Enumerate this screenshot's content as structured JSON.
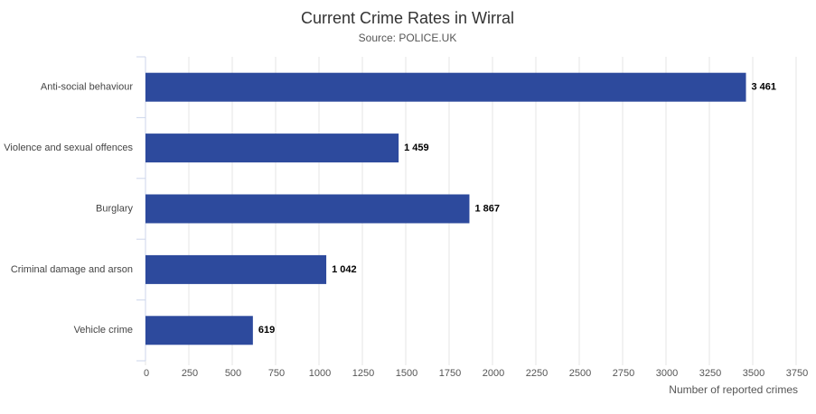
{
  "chart_data": {
    "type": "bar",
    "orientation": "horizontal",
    "title": "Current Crime Rates in Wirral",
    "subtitle": "Source: POLICE.UK",
    "categories": [
      "Anti-social behaviour",
      "Violence and sexual offences",
      "Burglary",
      "Criminal damage and arson",
      "Vehicle crime"
    ],
    "values": [
      3461,
      1459,
      1867,
      1042,
      619
    ],
    "value_labels": [
      "3 461",
      "1 459",
      "1 867",
      "1 042",
      "619"
    ],
    "color": "#2d4a9d",
    "xlabel": "Number of reported crimes",
    "xlim": [
      0,
      3750
    ],
    "xticks": [
      0,
      250,
      500,
      750,
      1000,
      1250,
      1500,
      1750,
      2000,
      2250,
      2500,
      2750,
      3000,
      3250,
      3500,
      3750
    ],
    "grid": true
  }
}
